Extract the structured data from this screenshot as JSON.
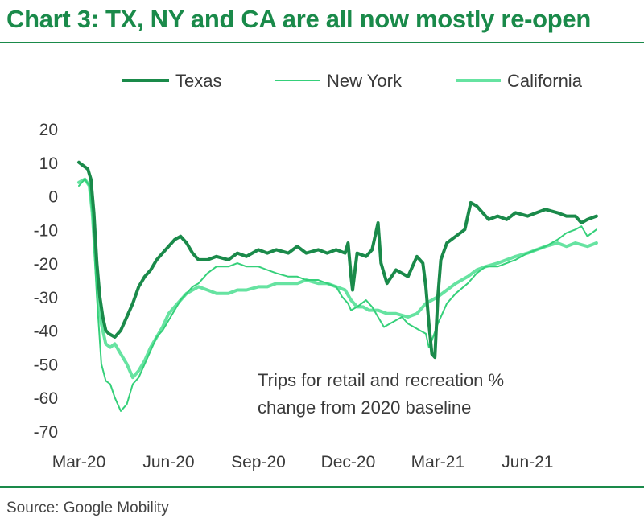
{
  "header": {
    "title": "Chart 3: TX, NY and CA are all now mostly re-open"
  },
  "footer": {
    "source": "Source: Google Mobility"
  },
  "chart_data": {
    "type": "line",
    "title": "Chart 3: TX, NY and CA are all now mostly re-open",
    "annotation": [
      "Trips for retail and recreation %",
      "change from 2020 baseline"
    ],
    "xlabel": "",
    "ylabel": "",
    "x_ticks": [
      {
        "label": "Mar-20",
        "t": 0
      },
      {
        "label": "Jun-20",
        "t": 3
      },
      {
        "label": "Sep-20",
        "t": 6
      },
      {
        "label": "Dec-20",
        "t": 9
      },
      {
        "label": "Mar-21",
        "t": 12
      },
      {
        "label": "Jun-21",
        "t": 15
      }
    ],
    "xlim": [
      0,
      17.6
    ],
    "ylim": [
      -70,
      20
    ],
    "y_ticks": [
      20,
      10,
      0,
      -10,
      -20,
      -30,
      -40,
      -50,
      -60,
      -70
    ],
    "zero_line": true,
    "grid": false,
    "legend_position": "top",
    "series": [
      {
        "name": "Texas",
        "color": "#1a8a4a",
        "width": 4,
        "points": [
          [
            0,
            10
          ],
          [
            0.15,
            9
          ],
          [
            0.3,
            8
          ],
          [
            0.4,
            5
          ],
          [
            0.5,
            -5
          ],
          [
            0.6,
            -20
          ],
          [
            0.7,
            -30
          ],
          [
            0.8,
            -36
          ],
          [
            0.9,
            -40
          ],
          [
            1.0,
            -41
          ],
          [
            1.2,
            -42
          ],
          [
            1.4,
            -40
          ],
          [
            1.6,
            -36
          ],
          [
            1.8,
            -32
          ],
          [
            2.0,
            -27
          ],
          [
            2.2,
            -24
          ],
          [
            2.4,
            -22
          ],
          [
            2.6,
            -19
          ],
          [
            2.8,
            -17
          ],
          [
            3.0,
            -15
          ],
          [
            3.2,
            -13
          ],
          [
            3.4,
            -12
          ],
          [
            3.6,
            -14
          ],
          [
            3.8,
            -17
          ],
          [
            4.0,
            -19
          ],
          [
            4.3,
            -19
          ],
          [
            4.6,
            -18
          ],
          [
            5.0,
            -19
          ],
          [
            5.3,
            -17
          ],
          [
            5.6,
            -18
          ],
          [
            6.0,
            -16
          ],
          [
            6.3,
            -17
          ],
          [
            6.6,
            -16
          ],
          [
            7.0,
            -17
          ],
          [
            7.3,
            -15
          ],
          [
            7.6,
            -17
          ],
          [
            8.0,
            -16
          ],
          [
            8.3,
            -17
          ],
          [
            8.6,
            -16
          ],
          [
            8.9,
            -17
          ],
          [
            9.0,
            -14
          ],
          [
            9.1,
            -24
          ],
          [
            9.15,
            -28
          ],
          [
            9.3,
            -17
          ],
          [
            9.6,
            -18
          ],
          [
            9.8,
            -16
          ],
          [
            10.0,
            -8
          ],
          [
            10.1,
            -20
          ],
          [
            10.3,
            -26
          ],
          [
            10.6,
            -22
          ],
          [
            11.0,
            -24
          ],
          [
            11.3,
            -18
          ],
          [
            11.5,
            -20
          ],
          [
            11.6,
            -27
          ],
          [
            11.7,
            -38
          ],
          [
            11.8,
            -47
          ],
          [
            11.9,
            -48
          ],
          [
            12.0,
            -30
          ],
          [
            12.1,
            -19
          ],
          [
            12.3,
            -14
          ],
          [
            12.6,
            -12
          ],
          [
            12.9,
            -10
          ],
          [
            13.1,
            -2
          ],
          [
            13.3,
            -3
          ],
          [
            13.5,
            -5
          ],
          [
            13.7,
            -7
          ],
          [
            14.0,
            -6
          ],
          [
            14.3,
            -7
          ],
          [
            14.6,
            -5
          ],
          [
            15.0,
            -6
          ],
          [
            15.3,
            -5
          ],
          [
            15.6,
            -4
          ],
          [
            16.0,
            -5
          ],
          [
            16.3,
            -6
          ],
          [
            16.6,
            -6
          ],
          [
            16.8,
            -8
          ],
          [
            17.0,
            -7
          ],
          [
            17.3,
            -6
          ]
        ]
      },
      {
        "name": "New York",
        "color": "#35d07a",
        "width": 2,
        "points": [
          [
            0,
            3
          ],
          [
            0.2,
            5
          ],
          [
            0.35,
            3
          ],
          [
            0.45,
            -5
          ],
          [
            0.6,
            -30
          ],
          [
            0.75,
            -50
          ],
          [
            0.9,
            -55
          ],
          [
            1.05,
            -56
          ],
          [
            1.2,
            -60
          ],
          [
            1.4,
            -64
          ],
          [
            1.6,
            -62
          ],
          [
            1.8,
            -56
          ],
          [
            2.0,
            -54
          ],
          [
            2.2,
            -50
          ],
          [
            2.4,
            -46
          ],
          [
            2.6,
            -42
          ],
          [
            2.8,
            -40
          ],
          [
            3.0,
            -37
          ],
          [
            3.2,
            -34
          ],
          [
            3.4,
            -31
          ],
          [
            3.6,
            -29
          ],
          [
            3.8,
            -27
          ],
          [
            4.0,
            -26
          ],
          [
            4.3,
            -23
          ],
          [
            4.6,
            -21
          ],
          [
            5.0,
            -21
          ],
          [
            5.3,
            -20
          ],
          [
            5.6,
            -21
          ],
          [
            6.0,
            -21
          ],
          [
            6.3,
            -22
          ],
          [
            6.6,
            -23
          ],
          [
            7.0,
            -24
          ],
          [
            7.3,
            -24
          ],
          [
            7.6,
            -25
          ],
          [
            8.0,
            -25
          ],
          [
            8.3,
            -26
          ],
          [
            8.6,
            -27
          ],
          [
            8.8,
            -30
          ],
          [
            9.0,
            -32
          ],
          [
            9.1,
            -34
          ],
          [
            9.3,
            -33
          ],
          [
            9.6,
            -31
          ],
          [
            9.8,
            -33
          ],
          [
            10.0,
            -36
          ],
          [
            10.2,
            -39
          ],
          [
            10.4,
            -38
          ],
          [
            10.6,
            -37
          ],
          [
            10.8,
            -36
          ],
          [
            11.0,
            -38
          ],
          [
            11.2,
            -39
          ],
          [
            11.4,
            -40
          ],
          [
            11.6,
            -41
          ],
          [
            11.7,
            -45
          ],
          [
            11.8,
            -43
          ],
          [
            12.0,
            -38
          ],
          [
            12.3,
            -32
          ],
          [
            12.6,
            -29
          ],
          [
            13.0,
            -26
          ],
          [
            13.3,
            -23
          ],
          [
            13.6,
            -21
          ],
          [
            14.0,
            -21
          ],
          [
            14.3,
            -20
          ],
          [
            14.6,
            -19
          ],
          [
            15.0,
            -17
          ],
          [
            15.3,
            -16
          ],
          [
            15.6,
            -15
          ],
          [
            16.0,
            -13
          ],
          [
            16.3,
            -11
          ],
          [
            16.6,
            -10
          ],
          [
            16.8,
            -9
          ],
          [
            17.0,
            -12
          ],
          [
            17.3,
            -10
          ]
        ]
      },
      {
        "name": "California",
        "color": "#66e3a1",
        "width": 4,
        "points": [
          [
            0,
            4
          ],
          [
            0.2,
            5
          ],
          [
            0.35,
            3
          ],
          [
            0.45,
            -5
          ],
          [
            0.6,
            -25
          ],
          [
            0.75,
            -38
          ],
          [
            0.9,
            -44
          ],
          [
            1.05,
            -45
          ],
          [
            1.2,
            -44
          ],
          [
            1.4,
            -47
          ],
          [
            1.6,
            -50
          ],
          [
            1.8,
            -54
          ],
          [
            2.0,
            -52
          ],
          [
            2.2,
            -49
          ],
          [
            2.4,
            -45
          ],
          [
            2.6,
            -42
          ],
          [
            2.8,
            -39
          ],
          [
            3.0,
            -35
          ],
          [
            3.2,
            -33
          ],
          [
            3.4,
            -31
          ],
          [
            3.6,
            -29
          ],
          [
            3.8,
            -28
          ],
          [
            4.0,
            -27
          ],
          [
            4.3,
            -28
          ],
          [
            4.6,
            -29
          ],
          [
            5.0,
            -29
          ],
          [
            5.3,
            -28
          ],
          [
            5.6,
            -28
          ],
          [
            6.0,
            -27
          ],
          [
            6.3,
            -27
          ],
          [
            6.6,
            -26
          ],
          [
            7.0,
            -26
          ],
          [
            7.3,
            -26
          ],
          [
            7.6,
            -25
          ],
          [
            8.0,
            -26
          ],
          [
            8.3,
            -26
          ],
          [
            8.6,
            -27
          ],
          [
            8.9,
            -28
          ],
          [
            9.1,
            -31
          ],
          [
            9.3,
            -33
          ],
          [
            9.5,
            -33
          ],
          [
            9.7,
            -34
          ],
          [
            10.0,
            -34
          ],
          [
            10.3,
            -35
          ],
          [
            10.6,
            -35
          ],
          [
            11.0,
            -36
          ],
          [
            11.3,
            -35
          ],
          [
            11.6,
            -32
          ],
          [
            12.0,
            -30
          ],
          [
            12.3,
            -28
          ],
          [
            12.6,
            -26
          ],
          [
            13.0,
            -24
          ],
          [
            13.3,
            -22
          ],
          [
            13.6,
            -21
          ],
          [
            14.0,
            -20
          ],
          [
            14.3,
            -19
          ],
          [
            14.6,
            -18
          ],
          [
            15.0,
            -17
          ],
          [
            15.3,
            -16
          ],
          [
            15.6,
            -15
          ],
          [
            16.0,
            -14
          ],
          [
            16.3,
            -15
          ],
          [
            16.6,
            -14
          ],
          [
            17.0,
            -15
          ],
          [
            17.3,
            -14
          ]
        ]
      }
    ]
  }
}
